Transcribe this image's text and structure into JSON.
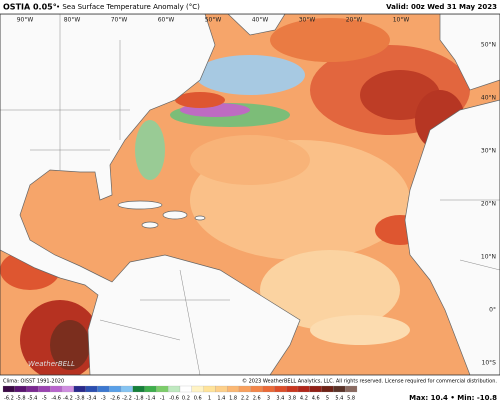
{
  "header": {
    "title": "OSTIA 0.05°",
    "subtitle": "• Sea Surface Temperature Anomaly (°C)",
    "valid": "Valid: 00z Wed 31 May 2023"
  },
  "map": {
    "longitude_labels": [
      "90°W",
      "80°W",
      "70°W",
      "60°W",
      "50°W",
      "40°W",
      "30°W",
      "20°W",
      "10°W"
    ],
    "latitude_labels": [
      "50°N",
      "40°N",
      "30°N",
      "20°N",
      "10°N",
      "0°",
      "10°S"
    ],
    "watermark": "WeatherBELL"
  },
  "legend": {
    "labels": [
      -6.2,
      -5.8,
      -5.4,
      -5,
      -4.6,
      -4.2,
      -3.8,
      -3.4,
      -3,
      -2.6,
      -2.2,
      -1.8,
      -1.4,
      -1,
      -0.6,
      0.2,
      0.6,
      1,
      1.4,
      1.8,
      2.2,
      2.6,
      3,
      3.4,
      3.8,
      4.2,
      4.6,
      5,
      5.4,
      5.8
    ],
    "colors": [
      "#3b0a45",
      "#5a1470",
      "#7a2a90",
      "#9a44b0",
      "#b865cc",
      "#cf8ee0",
      "#2a2a8c",
      "#2c4fb0",
      "#3d78d0",
      "#5aa0e8",
      "#86c4f2",
      "#16803a",
      "#3eae4c",
      "#7ccd6a",
      "#bfe9c0",
      "#ffffff",
      "#fff3c4",
      "#ffe39a",
      "#fdd08a",
      "#fbb874",
      "#f8a05e",
      "#f2864a",
      "#ea6a38",
      "#dc4e2a",
      "#c8371f",
      "#b0261a",
      "#902016",
      "#6e2216",
      "#5a3328",
      "#8a6a60"
    ]
  },
  "footer": {
    "clima": "Clima: OISST 1991-2020",
    "copyright": "© 2023 WeatherBELL Analytics, LLC. All rights reserved. License required for commercial distribution.",
    "extremes": "Max: 10.4 • Min: -10.8"
  }
}
